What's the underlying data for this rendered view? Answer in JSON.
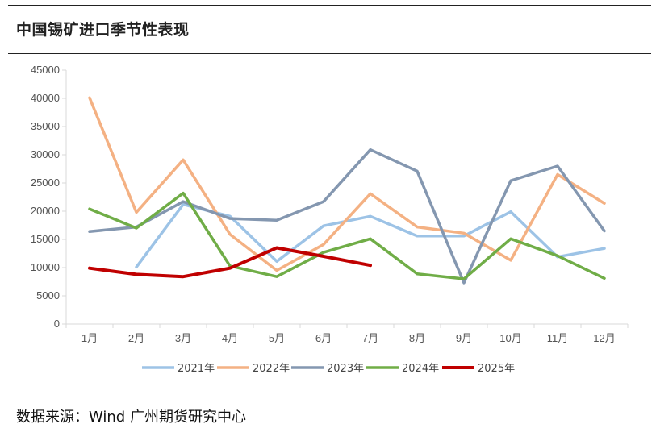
{
  "header": {
    "title": "中国锡矿进口季节性表现"
  },
  "footer": {
    "source": "数据来源：Wind  广州期货研究中心"
  },
  "chart_data": {
    "type": "line",
    "title": "中国锡矿进口季节性表现",
    "xlabel": "",
    "ylabel": "",
    "categories": [
      "1月",
      "2月",
      "3月",
      "4月",
      "5月",
      "6月",
      "7月",
      "8月",
      "9月",
      "10月",
      "11月",
      "12月"
    ],
    "ylim": [
      0,
      45000
    ],
    "yticks": [
      0,
      5000,
      10000,
      15000,
      20000,
      25000,
      30000,
      35000,
      40000,
      45000
    ],
    "grid": false,
    "legend": "bottom",
    "series": [
      {
        "name": "2021年",
        "color": "#9DC3E6",
        "values": [
          null,
          10100,
          21200,
          19100,
          11100,
          17400,
          19100,
          15600,
          15600,
          19900,
          11900,
          13400
        ]
      },
      {
        "name": "2022年",
        "color": "#F4B183",
        "values": [
          40100,
          19800,
          29100,
          15900,
          9500,
          14100,
          23100,
          17200,
          16100,
          11300,
          26500,
          21400
        ]
      },
      {
        "name": "2023年",
        "color": "#8497B0",
        "values": [
          16400,
          17200,
          21700,
          18700,
          18400,
          21700,
          30900,
          27100,
          7300,
          25400,
          28000,
          16500
        ]
      },
      {
        "name": "2024年",
        "color": "#70AD47",
        "values": [
          20400,
          17000,
          23200,
          10300,
          8400,
          12700,
          15100,
          8900,
          8000,
          15100,
          12100,
          8100
        ]
      },
      {
        "name": "2025年",
        "color": "#C00000",
        "values": [
          9900,
          8800,
          8400,
          9900,
          13500,
          12000,
          10400,
          null,
          null,
          null,
          null,
          null
        ]
      }
    ]
  }
}
